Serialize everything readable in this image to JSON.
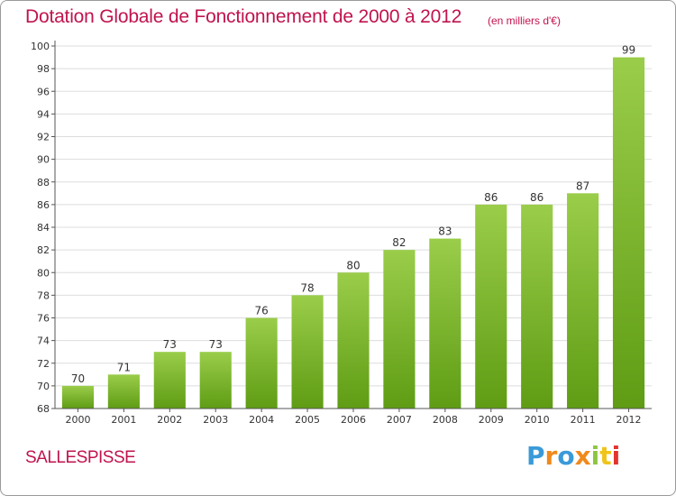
{
  "header": {
    "title": "Dotation Globale de Fonctionnement de 2000 à 2012",
    "subtitle": "(en milliers d'€)"
  },
  "footer": {
    "commune": "SALLESPISSE",
    "logo_letters": [
      "P",
      "r",
      "o",
      "x",
      "i",
      "t",
      "i"
    ]
  },
  "colors": {
    "title": "#c0134f",
    "bar_light": "#9acd4a",
    "bar_dark": "#5f9c14",
    "grid": "#dddddd",
    "axis": "#555555"
  },
  "chart_data": {
    "type": "bar",
    "title": "Dotation Globale de Fonctionnement de 2000 à 2012",
    "subtitle": "(en milliers d'€)",
    "categories": [
      "2000",
      "2001",
      "2002",
      "2003",
      "2004",
      "2005",
      "2006",
      "2007",
      "2008",
      "2009",
      "2010",
      "2011",
      "2012"
    ],
    "values": [
      70,
      71,
      73,
      73,
      76,
      78,
      80,
      82,
      83,
      86,
      86,
      87,
      99
    ],
    "ylim": [
      68,
      100
    ],
    "yticks": [
      68,
      70,
      72,
      74,
      76,
      78,
      80,
      82,
      84,
      86,
      88,
      90,
      92,
      94,
      96,
      98,
      100
    ],
    "grid": true,
    "xlabel": "",
    "ylabel": ""
  }
}
